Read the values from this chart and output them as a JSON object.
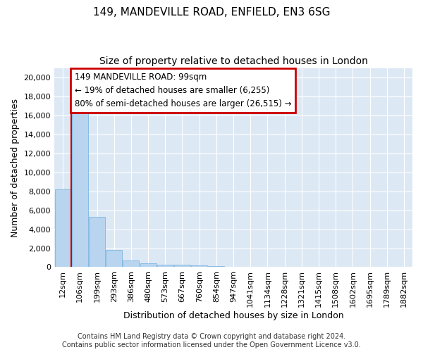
{
  "title_line1": "149, MANDEVILLE ROAD, ENFIELD, EN3 6SG",
  "title_line2": "Size of property relative to detached houses in London",
  "xlabel": "Distribution of detached houses by size in London",
  "ylabel": "Number of detached properties",
  "categories": [
    "12sqm",
    "106sqm",
    "199sqm",
    "293sqm",
    "386sqm",
    "480sqm",
    "573sqm",
    "667sqm",
    "760sqm",
    "854sqm",
    "947sqm",
    "1041sqm",
    "1134sqm",
    "1228sqm",
    "1321sqm",
    "1415sqm",
    "1508sqm",
    "1602sqm",
    "1695sqm",
    "1789sqm",
    "1882sqm"
  ],
  "values": [
    8200,
    16600,
    5300,
    1850,
    720,
    370,
    270,
    220,
    190,
    140,
    0,
    0,
    0,
    0,
    0,
    0,
    0,
    0,
    0,
    0,
    0
  ],
  "bar_color": "#b8d4ee",
  "bar_edge_color": "#6aafdf",
  "annotation_text_line1": "149 MANDEVILLE ROAD: 99sqm",
  "annotation_text_line2": "← 19% of detached houses are smaller (6,255)",
  "annotation_text_line3": "80% of semi-detached houses are larger (26,515) →",
  "annotation_box_color": "#ffffff",
  "annotation_box_edge_color": "#cc0000",
  "vline_color": "#cc0000",
  "vline_x_idx": 1,
  "ylim": [
    0,
    21000
  ],
  "yticks": [
    0,
    2000,
    4000,
    6000,
    8000,
    10000,
    12000,
    14000,
    16000,
    18000,
    20000
  ],
  "footer_line1": "Contains HM Land Registry data © Crown copyright and database right 2024.",
  "footer_line2": "Contains public sector information licensed under the Open Government Licence v3.0.",
  "fig_background_color": "#ffffff",
  "plot_background_color": "#dde8f5",
  "grid_color": "#ffffff",
  "title_fontsize": 11,
  "subtitle_fontsize": 10,
  "tick_fontsize": 8,
  "ylabel_fontsize": 9,
  "xlabel_fontsize": 9,
  "footer_fontsize": 7,
  "annot_fontsize": 8.5
}
